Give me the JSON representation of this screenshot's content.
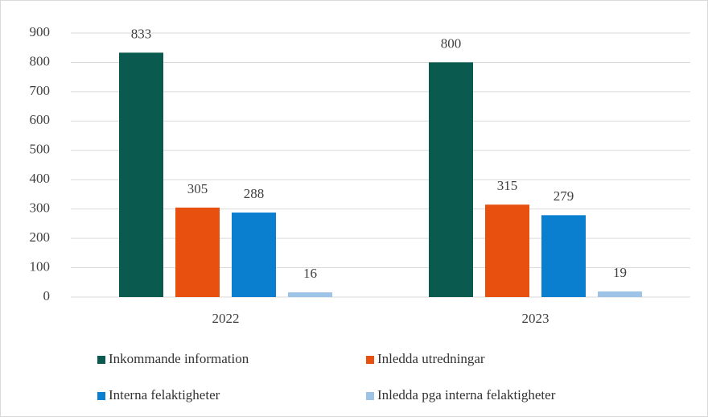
{
  "chart_data": {
    "type": "bar",
    "categories": [
      "2022",
      "2023"
    ],
    "series": [
      {
        "name": "Inkommande information",
        "color": "#0b5a4f",
        "values": [
          833,
          800
        ]
      },
      {
        "name": "Inledda utredningar",
        "color": "#e8500f",
        "values": [
          305,
          315
        ]
      },
      {
        "name": "Interna felaktigheter",
        "color": "#0a7fd0",
        "values": [
          288,
          279
        ]
      },
      {
        "name": "Inledda pga interna felaktigheter",
        "color": "#9dc3e6",
        "values": [
          16,
          19
        ]
      }
    ],
    "ylim": [
      0,
      900
    ],
    "yticks": [
      0,
      100,
      200,
      300,
      400,
      500,
      600,
      700,
      800,
      900
    ],
    "grid": true,
    "legend": "bottom"
  }
}
